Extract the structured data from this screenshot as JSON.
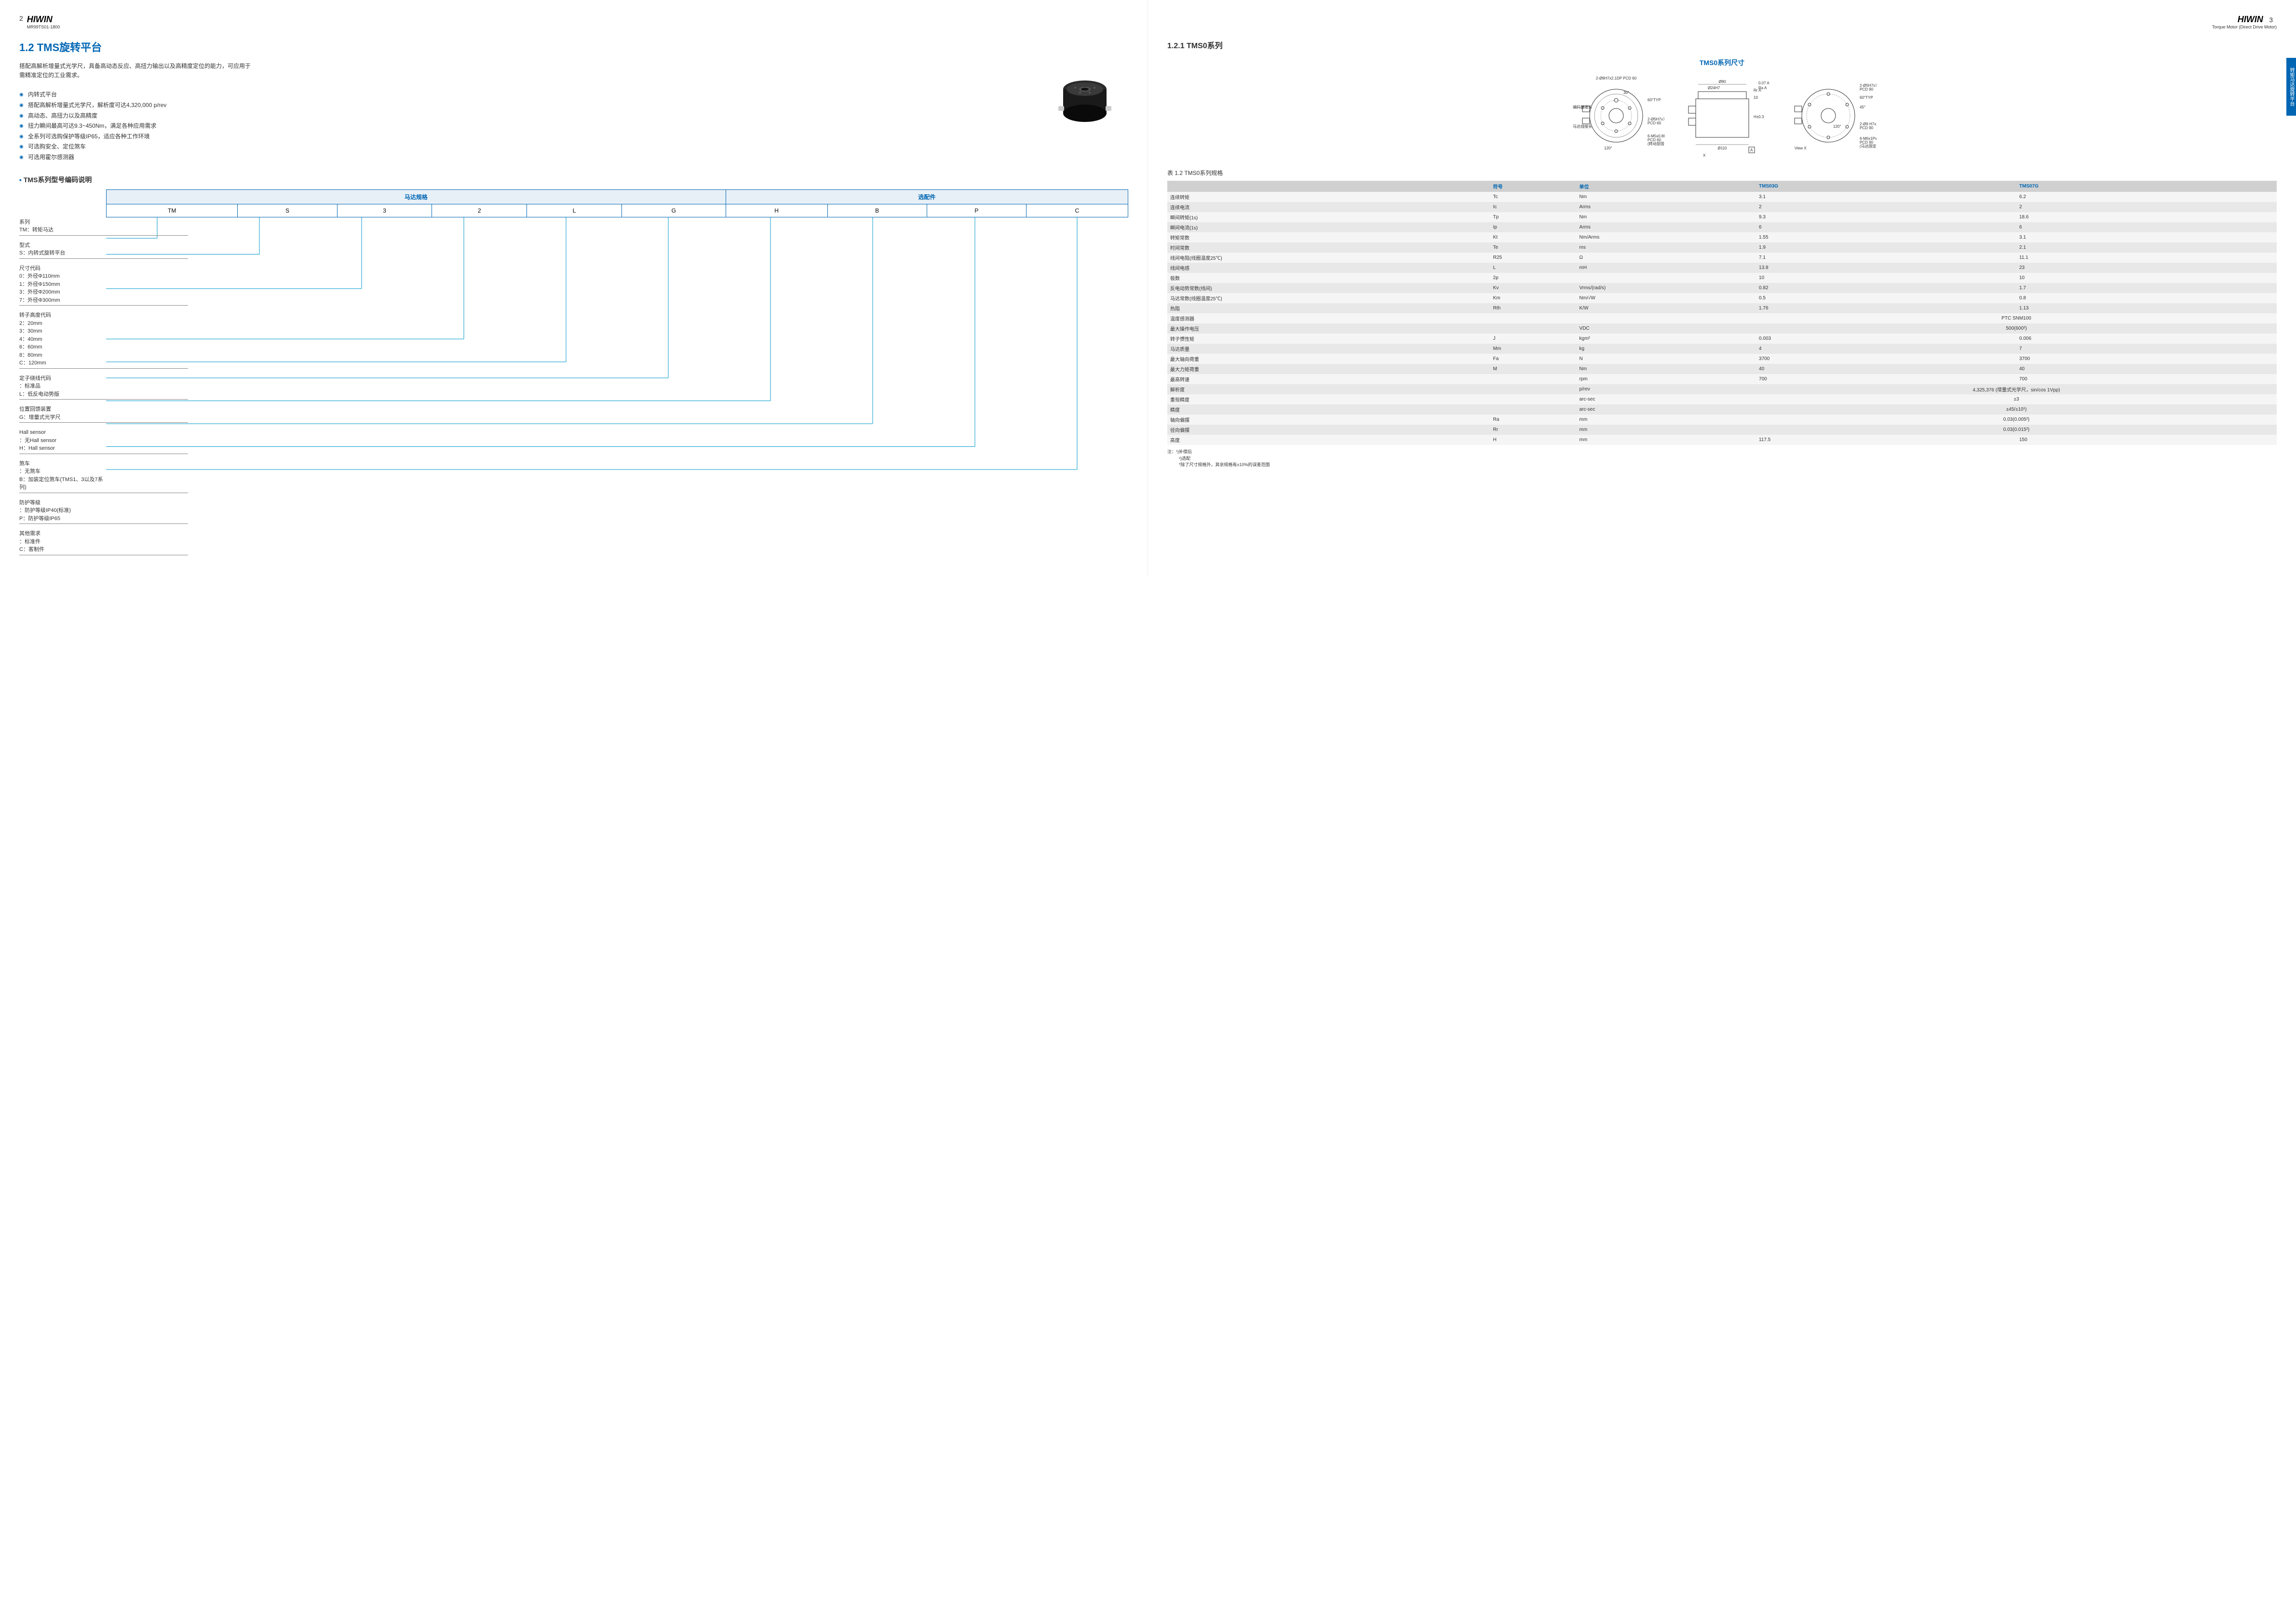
{
  "header": {
    "page_left": "2",
    "page_right": "3",
    "brand": "HIWIN",
    "sub_left": "MR99TS01-1800",
    "sub_right": "Torque Motor (Direct Drive Motor)"
  },
  "side_tab": "转矩马达旋转平台",
  "section": {
    "title": "1.2 TMS旋转平台",
    "intro": "搭配高解析增量式光学尺，具备高动态反应、高扭力输出以及高精度定位的能力，可应用于需精准定位的工业需求。",
    "bullets": [
      "内转式平台",
      "搭配高解析增量式光学尺，解析度可达4,320,000 p/rev",
      "高动态、高扭力以及高精度",
      "扭力瞬间最高可达9.3~450Nm，满足各种应用需求",
      "全系列可选购保护等级IP65，适应各种工作环境",
      "可选购安全、定位煞车",
      "可选用霍尔感测器"
    ]
  },
  "encoding": {
    "heading": "TMS系列型号编码说明",
    "group_headers": [
      "马达规格",
      "选配件"
    ],
    "cells": [
      "TM",
      "S",
      "3",
      "2",
      "L",
      "G",
      "H",
      "B",
      "P",
      "C"
    ],
    "groups": [
      {
        "title": "系列",
        "items": [
          "TM：转矩马达"
        ]
      },
      {
        "title": "型式",
        "items": [
          "S：内转式旋转平台"
        ]
      },
      {
        "title": "尺寸代码",
        "items": [
          "0：外径Φ110mm",
          "1：外径Φ150mm",
          "3：外径Φ200mm",
          "7：外径Φ300mm"
        ]
      },
      {
        "title": "转子高度代码",
        "items": [
          "2：20mm",
          "3：30mm",
          "4：40mm",
          "6：60mm",
          "8：80mm",
          "C：120mm"
        ]
      },
      {
        "title": "定子绕线代码",
        "items": [
          "：标准品",
          "L：低反电动势版"
        ]
      },
      {
        "title": "位置回馈装置",
        "items": [
          "G：增量式光学尺"
        ]
      },
      {
        "title": "Hall sensor",
        "items": [
          "：无Hall sensor",
          "H：Hall sensor"
        ]
      },
      {
        "title": "煞车",
        "items": [
          "：无煞车",
          "B：加装定位煞车(TMS1、3以及7系列)"
        ]
      },
      {
        "title": "防护等级",
        "items": [
          "：防护等级IP40(标准)",
          "P：防护等级IP65"
        ]
      },
      {
        "title": "其他需求",
        "items": [
          "：标准件",
          "C：客制件"
        ]
      }
    ]
  },
  "right_page": {
    "section_title": "1.2.1 TMS0系列",
    "diagram_title": "TMS0系列尺寸",
    "dim_labels": {
      "top_view_1": "2-Ø9H7x2.1DP\nPCD 60",
      "encoder": "编码器接头",
      "motor_conn": "马达线接头",
      "angle_30": "30°",
      "angle_120": "120°",
      "angle_60typ": "60°TYP",
      "holes_5h7": "2-Ø5H7x7DP\nPCD 60",
      "holes_m5": "6-M5x0.8Px10DP\nPCD 60\n(转动部固定孔)",
      "phi80": "Ø80",
      "phi24": "Ø24H7",
      "rr_a": "Rr A",
      "ra_a": "Ra A",
      "tol_007": "0.07 A",
      "h_10": "10",
      "h_03": "H±0.3",
      "phi110": "Ø110",
      "x_marker": "X",
      "a_marker": "A",
      "view_x": "View X",
      "holes_5h7_90": "2-Ø5H7x7DP\nPCD 90",
      "angle_45": "45°",
      "angle_120b": "120°",
      "holes_9h7_90": "2-Ø9 H7x2.1DP\nPCD 90",
      "holes_m6": "6-M6x1Px9DP\nPCD 90\n(马达固定孔)"
    }
  },
  "spec_table": {
    "title": "表 1.2 TMS0系列规格",
    "headers": [
      "",
      "符号",
      "单位",
      "TMS03G",
      "TMS07G"
    ],
    "rows": [
      [
        "连续转矩",
        "Tc",
        "Nm",
        "3.1",
        "6.2"
      ],
      [
        "连续电流",
        "Ic",
        "Arms",
        "2",
        "2"
      ],
      [
        "瞬间转矩(1s)",
        "Tp",
        "Nm",
        "9.3",
        "18.6"
      ],
      [
        "瞬间电流(1s)",
        "Ip",
        "Arms",
        "6",
        "6"
      ],
      [
        "转矩常数",
        "Kt",
        "Nm/Arms",
        "1.55",
        "3.1"
      ],
      [
        "时间常数",
        "Te",
        "ms",
        "1.9",
        "2.1"
      ],
      [
        "线间电阻(线圈温度25℃)",
        "R25",
        "Ω",
        "7.1",
        "11.1"
      ],
      [
        "线间电感",
        "L",
        "mH",
        "13.8",
        "23"
      ],
      [
        "极数",
        "2p",
        "",
        "10",
        "10"
      ],
      [
        "反电动势常数(线间)",
        "Kv",
        "Vrms/(rad/s)",
        "0.82",
        "1.7"
      ],
      [
        "马达常数(线圈温度25℃)",
        "Km",
        "Nm/√W",
        "0.5",
        "0.8"
      ],
      [
        "热阻",
        "Rth",
        "K/W",
        "1.76",
        "1.13"
      ],
      [
        "温度感测器",
        "",
        "",
        "PTC SNM100",
        ""
      ],
      [
        "最大操作电压",
        "",
        "VDC",
        "500(600²)",
        ""
      ],
      [
        "转子惯性矩",
        "J",
        "kgm²",
        "0.003",
        "0.006"
      ],
      [
        "马达质量",
        "Mm",
        "kg",
        "4",
        "7"
      ],
      [
        "最大轴向荷重",
        "Fa",
        "N",
        "3700",
        "3700"
      ],
      [
        "最大力矩荷重",
        "M",
        "Nm",
        "40",
        "40"
      ],
      [
        "最高转速",
        "",
        "rpm",
        "700",
        "700"
      ],
      [
        "解析度",
        "",
        "p/rev",
        "4,325,376 (增量式光学尺，sin/cos 1Vpp)",
        ""
      ],
      [
        "重现精度",
        "",
        "arc-sec",
        "±3",
        ""
      ],
      [
        "精度",
        "",
        "arc-sec",
        "±45/±10¹)",
        ""
      ],
      [
        "轴向偏摆",
        "Ra",
        "mm",
        "0.03(0.005²)",
        ""
      ],
      [
        "径向偏摆",
        "Rr",
        "mm",
        "0.03(0.015²)",
        ""
      ],
      [
        "高度",
        "H",
        "mm",
        "117.5",
        "150"
      ]
    ],
    "notes": [
      "注：¹)补偿后",
      "²)选配",
      "*除了尺寸规格外，其余规格有±10%的误差范围"
    ]
  }
}
